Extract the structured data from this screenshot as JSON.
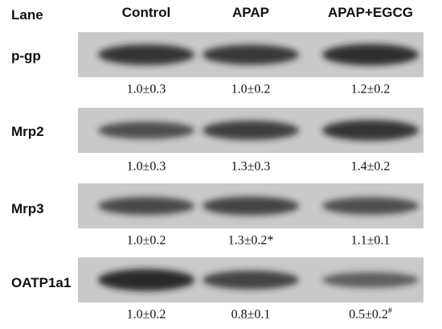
{
  "header": {
    "lane_label": "Lane",
    "columns": [
      "Control",
      "APAP",
      "APAP+EGCG"
    ]
  },
  "rows": [
    {
      "protein": "p-gp",
      "values": [
        "1.0±0.3",
        "1.0±0.2",
        "1.2±0.2"
      ],
      "marks": [
        "",
        "",
        ""
      ],
      "intensity": [
        0.85,
        0.8,
        0.9
      ]
    },
    {
      "protein": "Mrp2",
      "values": [
        "1.0±0.3",
        "1.3±0.3",
        "1.4±0.2"
      ],
      "marks": [
        "",
        "",
        ""
      ],
      "intensity": [
        0.6,
        0.75,
        0.85
      ]
    },
    {
      "protein": "Mrp3",
      "values": [
        "1.0±0.2",
        "1.3±0.2*",
        "1.1±0.1"
      ],
      "marks": [
        "",
        "",
        ""
      ],
      "intensity": [
        0.65,
        0.7,
        0.6
      ]
    },
    {
      "protein": "OATP1a1",
      "values": [
        "1.0±0.2",
        "0.8±0.1",
        "0.5±0.2"
      ],
      "marks": [
        "",
        "",
        "#"
      ],
      "intensity": [
        0.95,
        0.7,
        0.45
      ]
    }
  ],
  "colors": {
    "strip_background": "#c9c9c9",
    "band": "#1a1a1a"
  }
}
